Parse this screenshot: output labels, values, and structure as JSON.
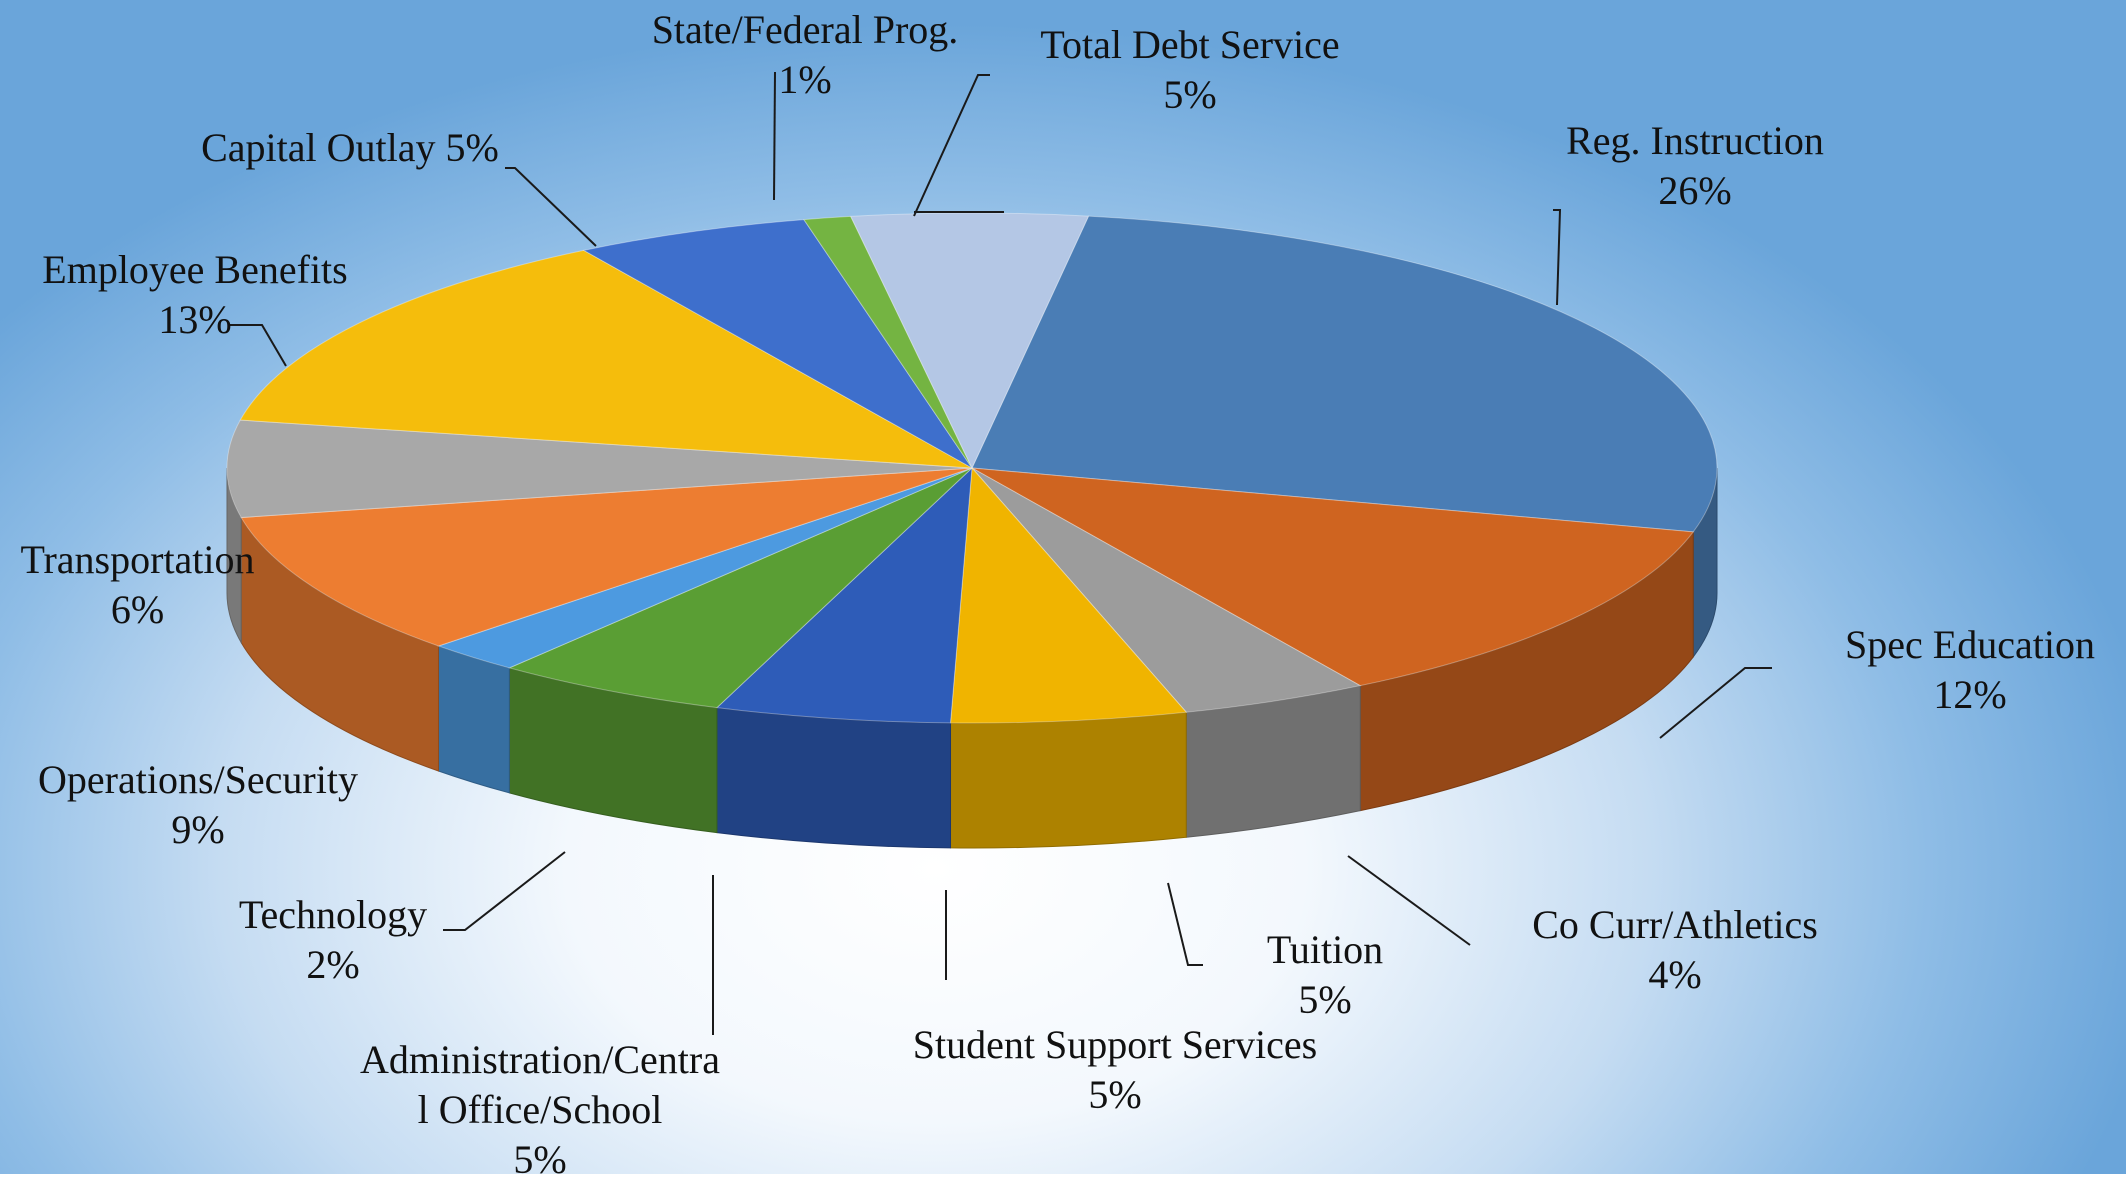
{
  "chart_data": {
    "type": "pie",
    "title": "",
    "slices": [
      {
        "label": "Reg. Instruction",
        "value": 26,
        "pct_text": "26%",
        "color": "#4a7db5"
      },
      {
        "label": "Spec Education",
        "value": 12,
        "pct_text": "12%",
        "color": "#cf6420"
      },
      {
        "label": "Co Curr/Athletics",
        "value": 4,
        "pct_text": "4%",
        "color": "#9c9c9c"
      },
      {
        "label": "Tuition",
        "value": 5,
        "pct_text": "5%",
        "color": "#f0b400"
      },
      {
        "label": "Student Support Services",
        "value": 5,
        "pct_text": "5%",
        "color": "#2e5cb8"
      },
      {
        "label": "Administration/Central Office/School",
        "value": 5,
        "pct_text": "5%",
        "color": "#5a9e34"
      },
      {
        "label": "Technology",
        "value": 2,
        "pct_text": "2%",
        "color": "#4d9ae0"
      },
      {
        "label": "Operations/Security",
        "value": 9,
        "pct_text": "9%",
        "color": "#ed7d31"
      },
      {
        "label": "Transportation",
        "value": 6,
        "pct_text": "6%",
        "color": "#a8a8a8"
      },
      {
        "label": "Employee Benefits",
        "value": 13,
        "pct_text": "13%",
        "color": "#f5bd0c"
      },
      {
        "label": "Capital Outlay",
        "value": 5,
        "pct_text": "5%",
        "color": "#3e6fcc"
      },
      {
        "label": "State/Federal Prog.",
        "value": 1,
        "pct_text": "1%",
        "color": "#74b442"
      },
      {
        "label": "Total Debt Service",
        "value": 5,
        "pct_text": "5%",
        "color": "#b4c7e5"
      }
    ]
  }
}
